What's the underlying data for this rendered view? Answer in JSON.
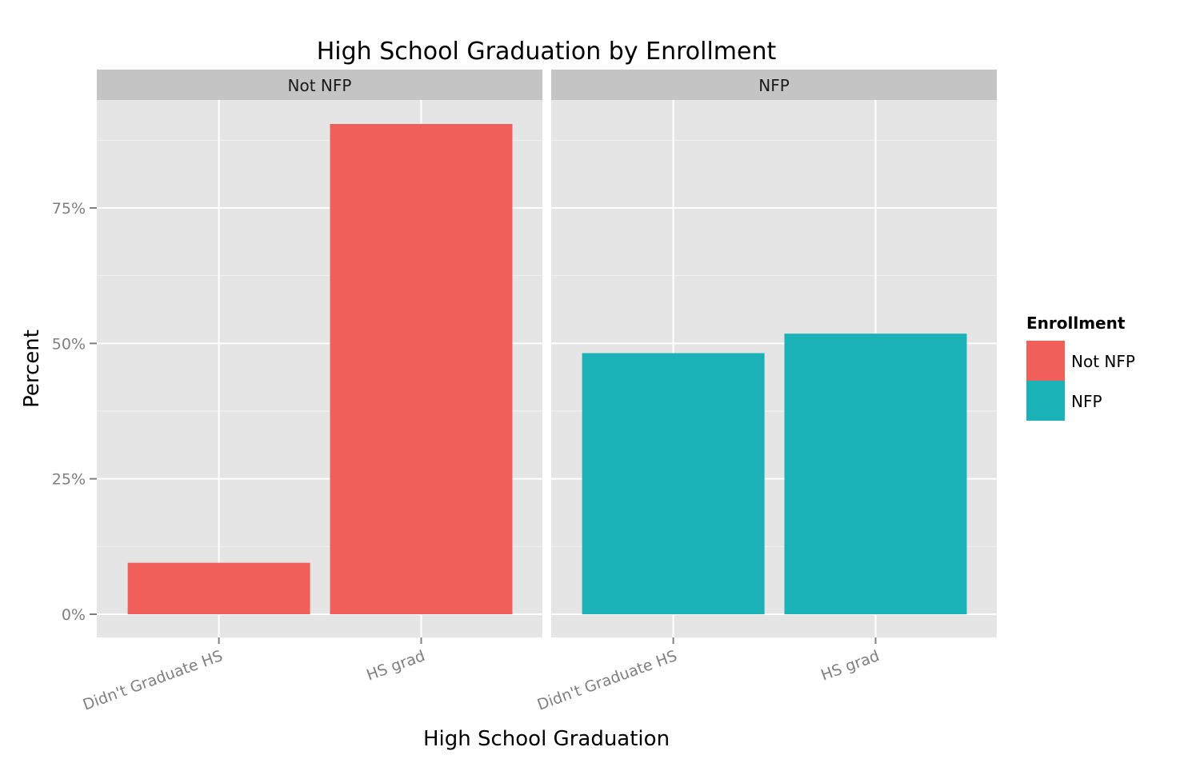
{
  "chart_data": {
    "type": "bar",
    "title": "High School Graduation by Enrollment",
    "xlabel": "High School Graduation",
    "ylabel": "Percent",
    "categories": [
      "Didn't Graduate HS",
      "HS grad"
    ],
    "ylim": [
      0,
      95
    ],
    "yticks": [
      0,
      25,
      50,
      75
    ],
    "ytick_labels": [
      "0%",
      "25%",
      "50%",
      "75%"
    ],
    "grid": true,
    "facet_by": "Enrollment",
    "panels": [
      {
        "name": "Not NFP",
        "color": "#F15F5B",
        "values": [
          9.5,
          90.5
        ]
      },
      {
        "name": "NFP",
        "color": "#1AB2B6",
        "values": [
          48.2,
          51.8
        ]
      }
    ],
    "legend": {
      "title": "Enrollment",
      "placement": "right",
      "entries": [
        {
          "label": "Not NFP",
          "color": "#F15F5B"
        },
        {
          "label": "NFP",
          "color": "#1AB2B6"
        }
      ]
    }
  }
}
